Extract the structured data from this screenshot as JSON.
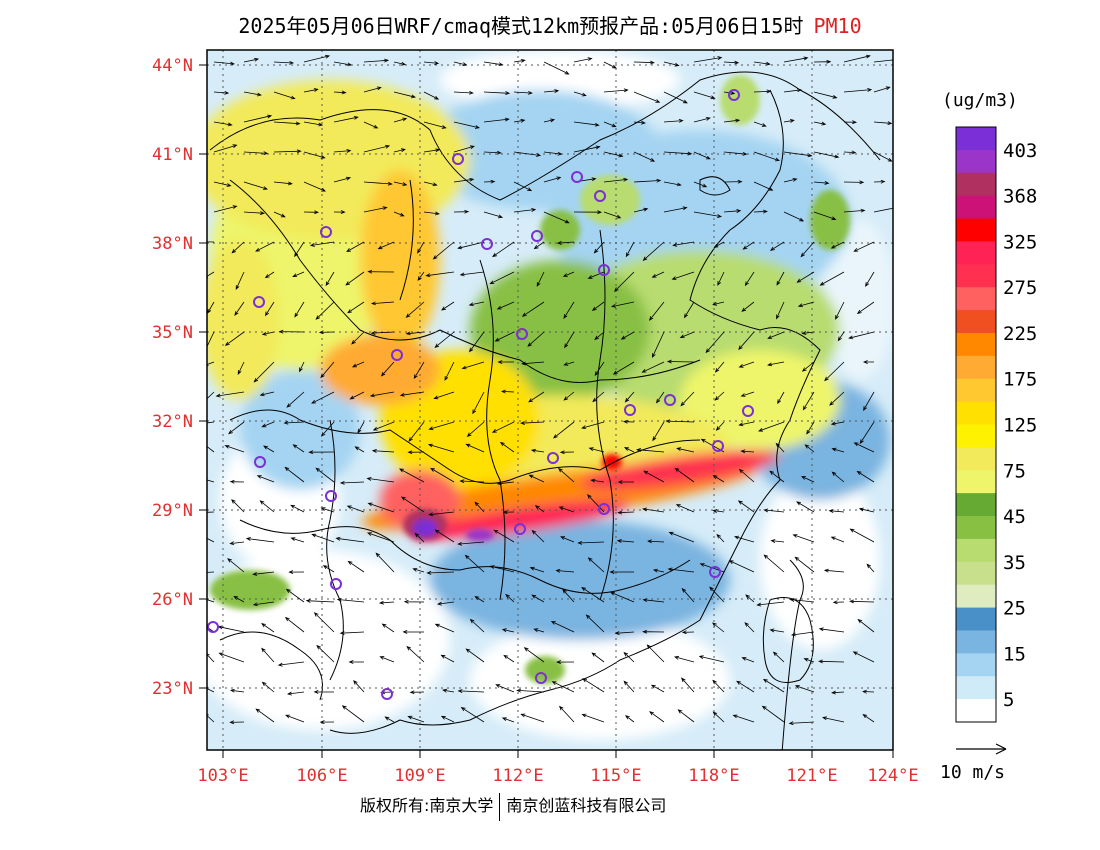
{
  "title": {
    "main": "2025年05月06日WRF/cmaq模式12km预报产品:05月06日15时",
    "pollutant": "PM10"
  },
  "axes": {
    "lat_labels": [
      "44°N",
      "41°N",
      "38°N",
      "35°N",
      "32°N",
      "29°N",
      "26°N",
      "23°N"
    ],
    "lon_labels": [
      "103°E",
      "106°E",
      "109°E",
      "112°E",
      "115°E",
      "118°E",
      "121°E",
      "124°E"
    ]
  },
  "legend": {
    "unit": "(ug/m3)",
    "labels": [
      "403",
      "368",
      "325",
      "275",
      "225",
      "175",
      "125",
      "75",
      "45",
      "35",
      "25",
      "15",
      "5"
    ],
    "colors": [
      "#7b2fd6",
      "#9b34c8",
      "#b03060",
      "#cc1177",
      "#ff0000",
      "#ff2255",
      "#ff3050",
      "#ff6060",
      "#f05020",
      "#ff8800",
      "#ffaa33",
      "#ffc830",
      "#ffe000",
      "#fff200",
      "#f2ea5a",
      "#eef56a",
      "#66aa33",
      "#88c044",
      "#b8dc70",
      "#c8e08c",
      "#dfecbf",
      "#4a90c8",
      "#7ab4e0",
      "#a4d4f2",
      "#d0ebf8",
      "#ffffff"
    ]
  },
  "wind_reference": "10 m/s",
  "copyright": {
    "prefix": "版权所有:南京大学",
    "company": "南京创蓝科技有限公司"
  }
}
